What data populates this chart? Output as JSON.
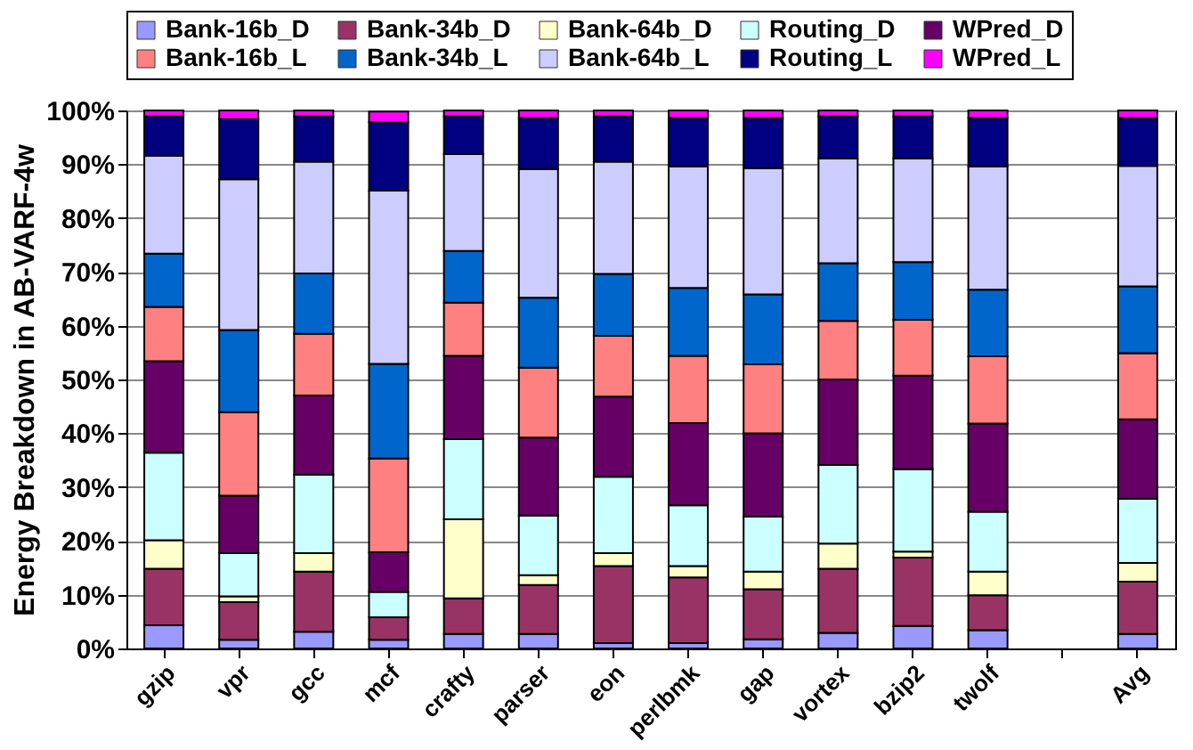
{
  "chart_data": {
    "type": "bar",
    "stacked": true,
    "ylabel": "Energy Breakdown in AB-VARF-4w",
    "categories": [
      "gzip",
      "vpr",
      "gcc",
      "mcf",
      "crafty",
      "parser",
      "eon",
      "perlbmk",
      "gap",
      "vortex",
      "bzip2",
      "twolf",
      null,
      "Avg"
    ],
    "series": [
      {
        "name": "Bank-16b_D",
        "color": "#9999ff",
        "values": [
          4.3,
          1.6,
          3.1,
          1.6,
          2.7,
          2.7,
          1.0,
          1.0,
          1.7,
          2.9,
          4.2,
          3.4,
          null,
          2.7
        ]
      },
      {
        "name": "Bank-34b_D",
        "color": "#993366",
        "values": [
          10.5,
          7.0,
          11.2,
          4.2,
          6.6,
          9.1,
          14.3,
          12.2,
          9.3,
          11.9,
          12.7,
          6.5,
          null,
          9.7
        ]
      },
      {
        "name": "Bank-64b_D",
        "color": "#ffffcc",
        "values": [
          5.3,
          1.1,
          3.4,
          null,
          14.7,
          1.8,
          2.4,
          2.1,
          3.3,
          4.7,
          1.1,
          4.4,
          null,
          3.5
        ]
      },
      {
        "name": "Routing_D",
        "color": "#ccffff",
        "values": [
          16.3,
          8.0,
          14.6,
          4.7,
          14.9,
          11.1,
          14.2,
          11.3,
          10.2,
          14.6,
          15.3,
          11.1,
          null,
          11.9
        ]
      },
      {
        "name": "WPred_D",
        "color": "#660066",
        "values": [
          17.0,
          10.7,
          14.7,
          7.4,
          15.5,
          14.5,
          14.9,
          15.3,
          15.5,
          15.9,
          17.4,
          16.4,
          null,
          14.8
        ]
      },
      {
        "name": "Bank-16b_L",
        "color": "#ff8080",
        "values": [
          10.1,
          15.5,
          11.5,
          17.4,
          9.9,
          13.0,
          11.3,
          12.5,
          12.8,
          10.9,
          10.4,
          12.5,
          null,
          12.3
        ]
      },
      {
        "name": "Bank-34b_L",
        "color": "#0066cc",
        "values": [
          9.9,
          15.3,
          11.2,
          17.6,
          9.6,
          13.0,
          11.5,
          12.6,
          13.0,
          10.7,
          10.7,
          12.4,
          null,
          12.4
        ]
      },
      {
        "name": "Bank-64b_L",
        "color": "#ccccff",
        "values": [
          18.2,
          28.0,
          20.8,
          32.2,
          18.0,
          23.9,
          20.9,
          22.6,
          23.5,
          19.5,
          19.3,
          22.9,
          null,
          22.4
        ]
      },
      {
        "name": "Routing_L",
        "color": "#000080",
        "values": [
          7.3,
          11.2,
          8.4,
          12.7,
          7.0,
          9.5,
          8.4,
          9.0,
          9.3,
          7.8,
          7.8,
          9.0,
          null,
          8.9
        ]
      },
      {
        "name": "WPred_L",
        "color": "#ff00ff",
        "values": [
          1.1,
          1.6,
          1.1,
          2.0,
          1.1,
          1.4,
          1.1,
          1.4,
          1.4,
          1.1,
          1.1,
          1.4,
          null,
          1.4
        ]
      }
    ],
    "ylim": [
      0,
      100
    ],
    "yticks": [
      {
        "value": 0,
        "label": "0%"
      },
      {
        "value": 10,
        "label": "10%"
      },
      {
        "value": 20,
        "label": "20%"
      },
      {
        "value": 30,
        "label": "30%"
      },
      {
        "value": 40,
        "label": "40%"
      },
      {
        "value": 50,
        "label": "50%"
      },
      {
        "value": 60,
        "label": "60%"
      },
      {
        "value": 70,
        "label": "70%"
      },
      {
        "value": 80,
        "label": "80%"
      },
      {
        "value": 90,
        "label": "90%"
      },
      {
        "value": 100,
        "label": "100%"
      }
    ],
    "grid": "y",
    "legend": "top"
  }
}
